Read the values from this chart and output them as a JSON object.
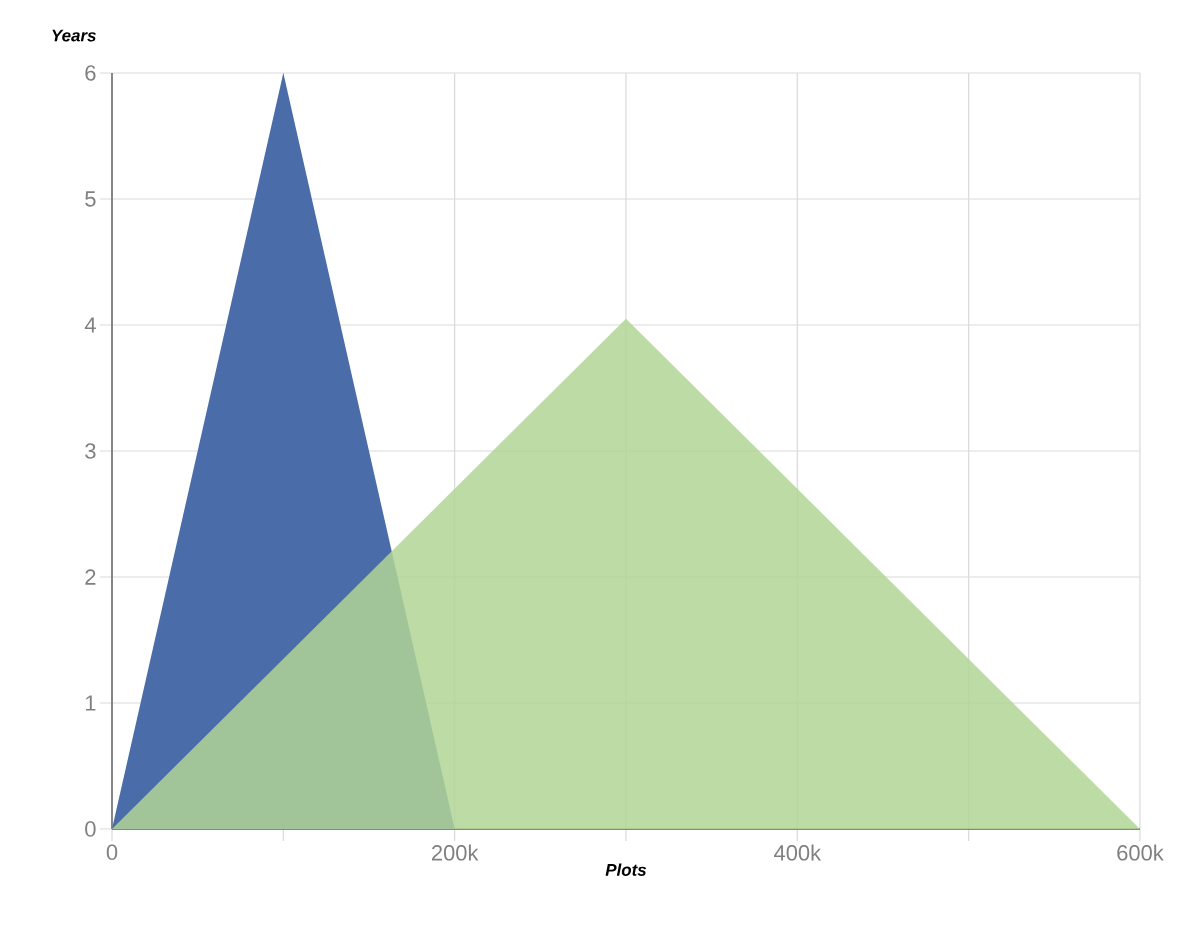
{
  "chart_data": {
    "type": "area",
    "xlabel": "Plots",
    "ylabel": "Years",
    "xlim": [
      0,
      600000
    ],
    "ylim": [
      0,
      6
    ],
    "xticks": [
      {
        "value": 0,
        "label": "0"
      },
      {
        "value": 100000,
        "label": null
      },
      {
        "value": 200000,
        "label": "200k"
      },
      {
        "value": 300000,
        "label": null
      },
      {
        "value": 400000,
        "label": "400k"
      },
      {
        "value": 500000,
        "label": null
      },
      {
        "value": 600000,
        "label": "600k"
      }
    ],
    "yticks": [
      0,
      1,
      2,
      3,
      4,
      5,
      6
    ],
    "grid": true,
    "series": [
      {
        "color": "#4a6ca8",
        "x": [
          0,
          100000,
          200000
        ],
        "values": [
          0,
          6,
          0
        ]
      },
      {
        "color": "#b0d595",
        "x": [
          0,
          300000,
          600000
        ],
        "values": [
          0,
          4.05,
          0
        ]
      }
    ]
  }
}
